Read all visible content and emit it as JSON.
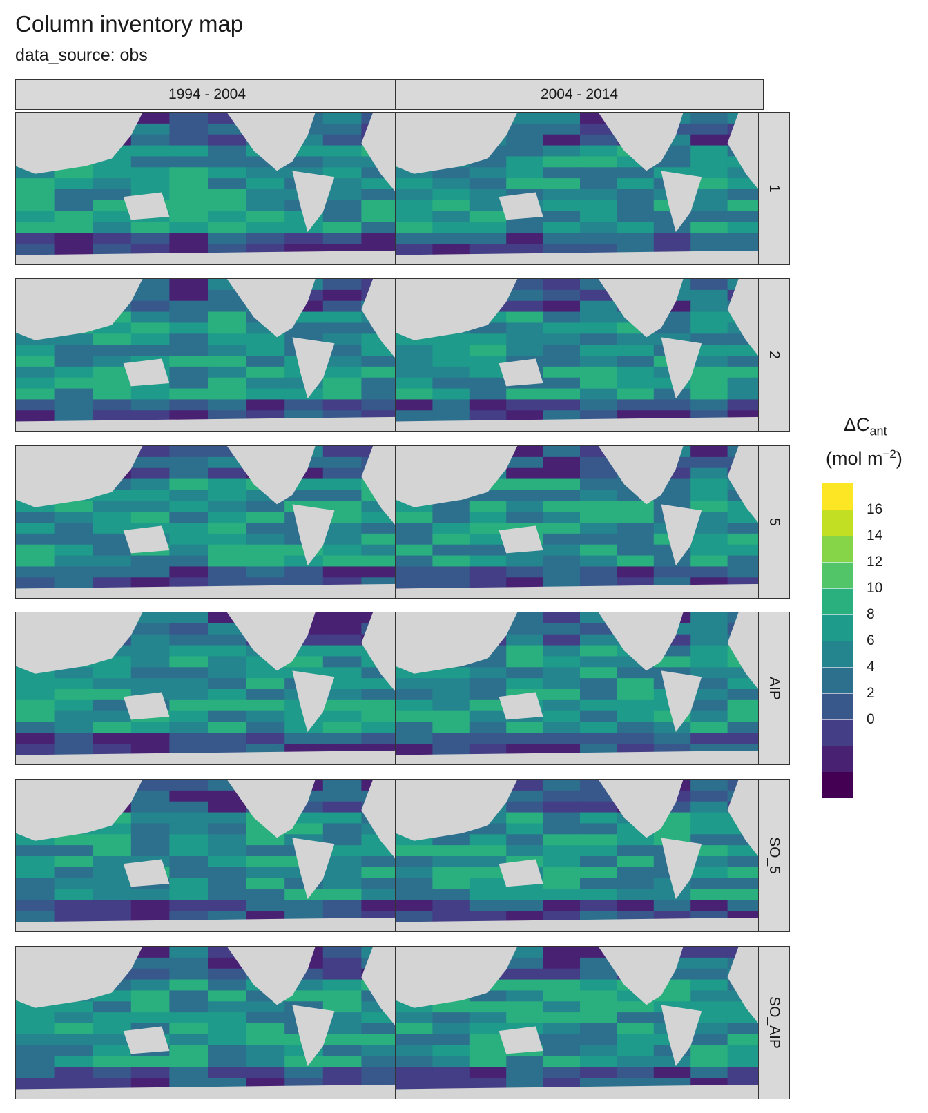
{
  "title": "Column inventory map",
  "subtitle": "data_source: obs",
  "columns": [
    "1994 - 2004",
    "2004 - 2014"
  ],
  "rows": [
    "1",
    "2",
    "5",
    "AIP",
    "SO_5",
    "SO_AIP"
  ],
  "legend": {
    "title_main": "ΔC",
    "title_sub": "ant",
    "unit_prefix": "(mol m",
    "unit_sup": "−2",
    "unit_suffix": ")",
    "breaks": [
      "16",
      "14",
      "12",
      "10",
      "8",
      "6",
      "4",
      "2",
      "0"
    ],
    "colors": [
      "#fde725",
      "#c2df23",
      "#86d549",
      "#52c569",
      "#2ab07f",
      "#1e9b8a",
      "#25858e",
      "#2d708e",
      "#38588c",
      "#433e85",
      "#482173",
      "#440154"
    ]
  },
  "colors": {
    "land": "#d4d4d4",
    "strip": "#d9d9d9"
  }
}
